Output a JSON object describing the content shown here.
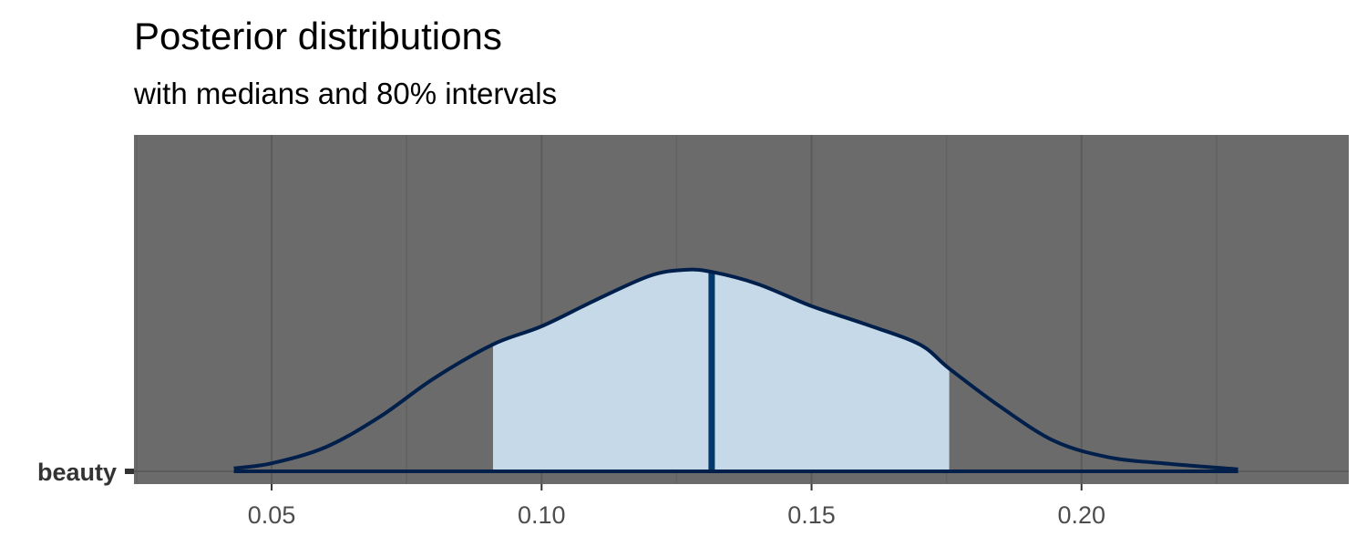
{
  "chart_data": {
    "type": "area",
    "title": "Posterior distributions",
    "subtitle": "with medians and 80% intervals",
    "xlabel": "",
    "ylabel": "",
    "xlim": [
      0.0245,
      0.2495
    ],
    "xticks": [
      0.05,
      0.1,
      0.15,
      0.2
    ],
    "xtick_labels": [
      "0.05",
      "0.10",
      "0.15",
      "0.20"
    ],
    "categories": [
      "beauty"
    ],
    "grid": true,
    "legend": "none",
    "series": [
      {
        "parameter": "beauty",
        "median": 0.1315,
        "interval_80": [
          0.091,
          0.1755
        ],
        "density_curve": {
          "x": [
            0.043,
            0.05,
            0.06,
            0.07,
            0.08,
            0.091,
            0.1,
            0.11,
            0.12,
            0.1265,
            0.1315,
            0.14,
            0.15,
            0.16,
            0.17,
            0.1755,
            0.185,
            0.195,
            0.205,
            0.215,
            0.229
          ],
          "y": [
            0.015,
            0.04,
            0.12,
            0.27,
            0.46,
            0.63,
            0.72,
            0.85,
            0.97,
            1.0,
            0.99,
            0.93,
            0.82,
            0.73,
            0.63,
            0.51,
            0.32,
            0.15,
            0.07,
            0.04,
            0.01
          ]
        }
      }
    ],
    "colors": {
      "panel_background": "#6b6b6b",
      "major_grid": "#5b5b5b",
      "minor_grid": "#626262",
      "interval_fill": "#c6d9e8",
      "curve_line": "#011f4b",
      "median_line": "#03396c",
      "tick_text": "#4d4d4d",
      "y_tick_text": "#333333"
    }
  }
}
